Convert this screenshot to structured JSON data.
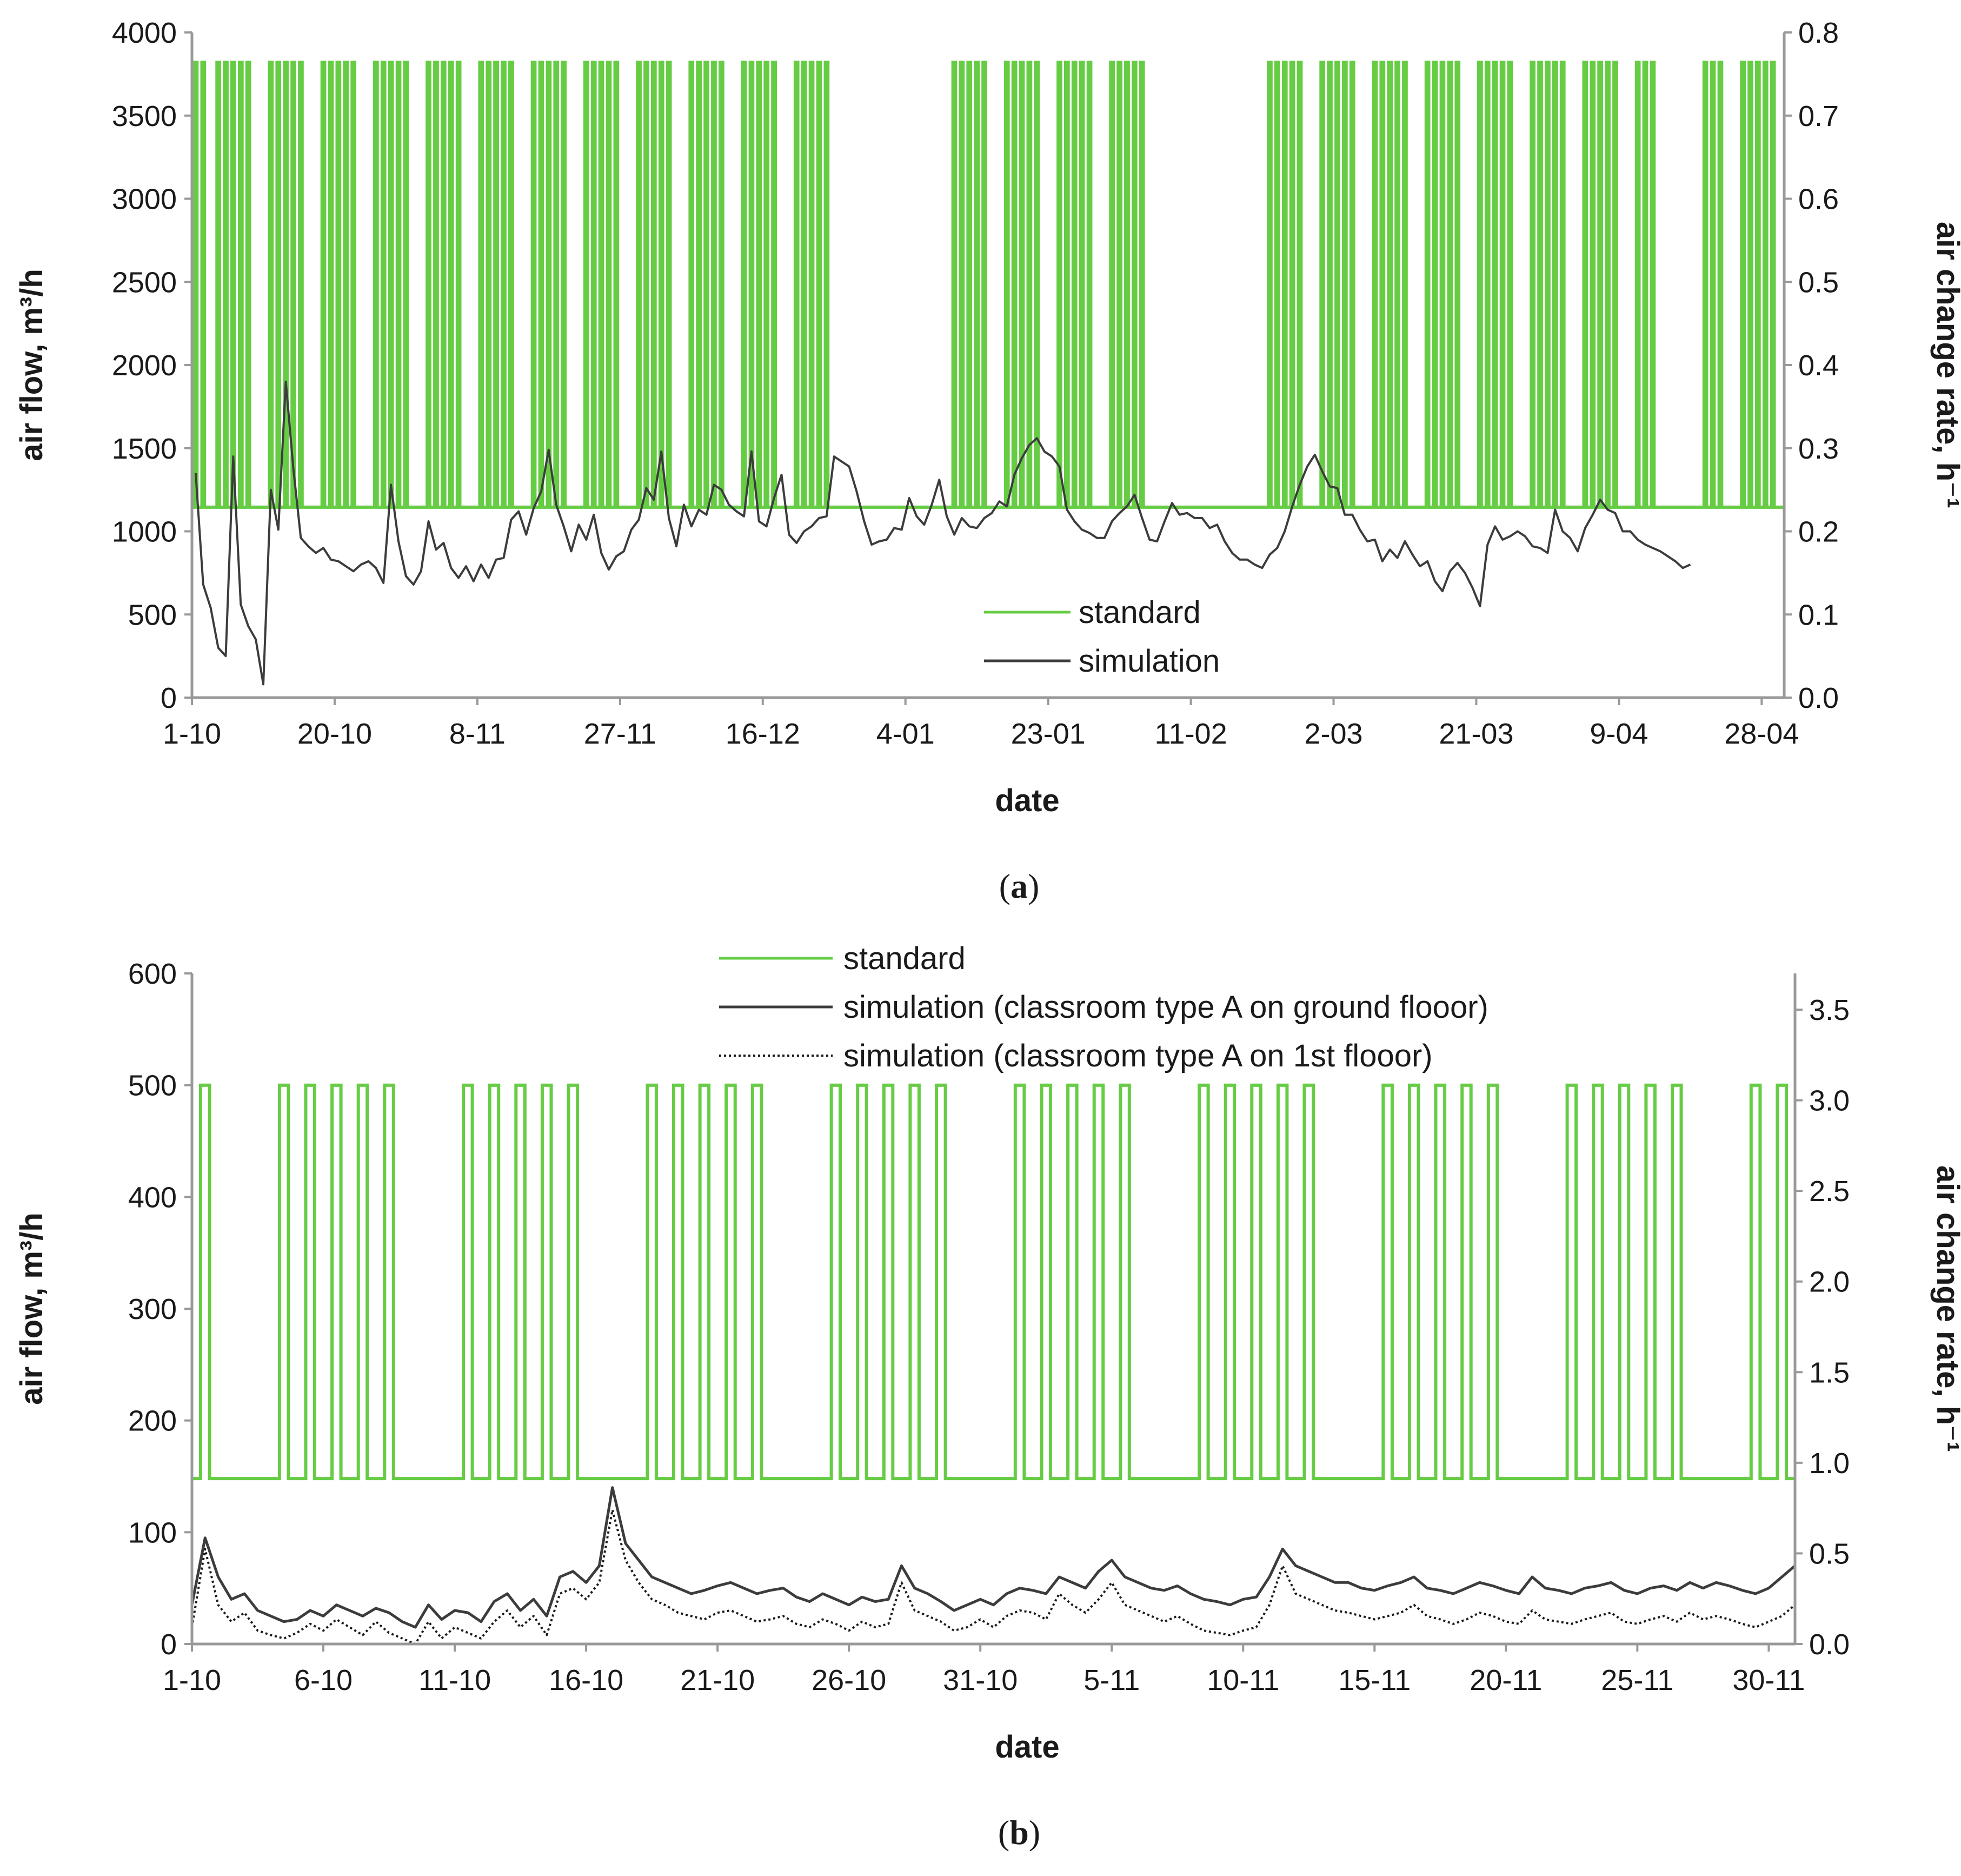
{
  "chart_data": [
    {
      "type": "line",
      "panel": "(a)",
      "caption_letter": "a",
      "xlabel": "date",
      "ylabel": "air flow, m³/h",
      "ylabel_right": "air change rate, h⁻¹",
      "ylim": [
        0,
        4000
      ],
      "ylim_right": [
        0.0,
        0.8
      ],
      "yticks": [
        "0",
        "500",
        "1000",
        "1500",
        "2000",
        "2500",
        "3000",
        "3500",
        "4000"
      ],
      "yticks_right": [
        "0.0",
        "0.1",
        "0.2",
        "0.3",
        "0.4",
        "0.5",
        "0.6",
        "0.7",
        "0.8"
      ],
      "x_tick_labels": [
        "1-10",
        "20-10",
        "8-11",
        "27-11",
        "16-12",
        "4-01",
        "23-01",
        "11-02",
        "2-03",
        "21-03",
        "9-04",
        "28-04"
      ],
      "x_tick_day_index": [
        0,
        19,
        38,
        57,
        76,
        95,
        114,
        133,
        152,
        171,
        190,
        209
      ],
      "x_range_days": [
        0,
        212
      ],
      "legend": [
        "standard",
        "simulation"
      ],
      "colors": {
        "standard": "#66cc44",
        "simulation": "#3c3c3c"
      },
      "series": [
        {
          "name": "standard",
          "description": "occupied-hours step schedule on school days",
          "values": {
            "occupied": 3820,
            "unoccupied": 1145
          },
          "occupied_periods_day_index": [
            [
              0,
              1
            ],
            [
              3,
              7
            ],
            [
              10,
              14
            ],
            [
              17,
              21
            ],
            [
              24,
              28
            ],
            [
              31,
              35
            ],
            [
              38,
              42
            ],
            [
              45,
              49
            ],
            [
              52,
              56
            ],
            [
              59,
              63
            ],
            [
              66,
              70
            ],
            [
              73,
              77
            ],
            [
              80,
              84
            ],
            [
              101,
              105
            ],
            [
              108,
              112
            ],
            [
              115,
              119
            ],
            [
              122,
              126
            ],
            [
              143,
              147
            ],
            [
              150,
              154
            ],
            [
              157,
              161
            ],
            [
              164,
              168
            ],
            [
              171,
              175
            ],
            [
              178,
              182
            ],
            [
              185,
              189
            ],
            [
              192,
              194
            ],
            [
              201,
              203
            ],
            [
              206,
              210
            ]
          ]
        },
        {
          "name": "simulation",
          "description": "simulated air flow, daily values (m3/h)",
          "values": [
            1350,
            680,
            540,
            300,
            250,
            1450,
            560,
            430,
            350,
            80,
            1250,
            1010,
            1900,
            1380,
            960,
            910,
            870,
            900,
            830,
            820,
            790,
            760,
            800,
            820,
            780,
            690,
            1280,
            940,
            730,
            680,
            760,
            1060,
            890,
            930,
            780,
            720,
            790,
            700,
            800,
            720,
            830,
            840,
            1070,
            1120,
            980,
            1140,
            1240,
            1490,
            1160,
            1030,
            880,
            1040,
            950,
            1100,
            870,
            770,
            850,
            880,
            1010,
            1070,
            1260,
            1190,
            1480,
            1080,
            910,
            1160,
            1030,
            1130,
            1100,
            1280,
            1250,
            1160,
            1120,
            1090,
            1480,
            1060,
            1030,
            1200,
            1340,
            980,
            930,
            1000,
            1030,
            1080,
            1090,
            1450,
            1420,
            1390,
            1240,
            1060,
            920,
            940,
            950,
            1020,
            1010,
            1200,
            1090,
            1040,
            1160,
            1310,
            1090,
            980,
            1080,
            1030,
            1020,
            1080,
            1110,
            1180,
            1150,
            1340,
            1440,
            1520,
            1560,
            1480,
            1450,
            1390,
            1130,
            1060,
            1010,
            990,
            960,
            960,
            1060,
            1110,
            1150,
            1220,
            1080,
            950,
            940,
            1060,
            1170,
            1100,
            1110,
            1080,
            1080,
            1020,
            1040,
            940,
            870,
            830,
            830,
            800,
            780,
            860,
            900,
            1000,
            1150,
            1280,
            1390,
            1460,
            1360,
            1270,
            1260,
            1100,
            1100,
            1010,
            940,
            950,
            820,
            890,
            840,
            940,
            860,
            790,
            820,
            700,
            640,
            760,
            810,
            750,
            660,
            550,
            920,
            1030,
            950,
            970,
            1000,
            970,
            910,
            900,
            870,
            1130,
            1000,
            960,
            880,
            1020,
            1100,
            1190,
            1130,
            1110,
            1000,
            1000,
            950,
            920,
            900,
            880,
            850,
            820,
            780,
            800
          ]
        }
      ]
    },
    {
      "type": "line",
      "panel": "(b)",
      "caption_letter": "b",
      "xlabel": "date",
      "ylabel": "air flow, m³/h",
      "ylabel_right": "air change rate, h⁻¹",
      "ylim": [
        0,
        600
      ],
      "ylim_right": [
        0.0,
        3.7
      ],
      "yticks": [
        "0",
        "100",
        "200",
        "300",
        "400",
        "500",
        "600"
      ],
      "yticks_right": [
        "0.0",
        "0.5",
        "1.0",
        "1.5",
        "2.0",
        "2.5",
        "3.0",
        "3.5"
      ],
      "x_tick_labels": [
        "1-10",
        "6-10",
        "11-10",
        "16-10",
        "21-10",
        "26-10",
        "31-10",
        "5-11",
        "10-11",
        "15-11",
        "20-11",
        "25-11",
        "30-11"
      ],
      "x_tick_day_index": [
        0,
        5,
        10,
        15,
        20,
        25,
        30,
        35,
        40,
        45,
        50,
        55,
        60
      ],
      "x_range_days": [
        0,
        61
      ],
      "legend": [
        "standard",
        "simulation (classroom type A on ground flooor)",
        "simulation (classroom type A on 1st flooor)"
      ],
      "colors": {
        "standard": "#66cc44",
        "ground": "#3c3c3c",
        "first": "#1a1a1a"
      },
      "series": [
        {
          "name": "standard",
          "description": "occupied-hours step schedule on school days",
          "values": {
            "occupied": 500,
            "unoccupied": 148
          },
          "school_days_day_index": [
            0,
            3,
            4,
            5,
            6,
            7,
            10,
            11,
            12,
            13,
            14,
            17,
            18,
            19,
            20,
            21,
            24,
            25,
            26,
            27,
            28,
            31,
            32,
            33,
            34,
            35,
            38,
            39,
            40,
            41,
            42,
            45,
            46,
            47,
            48,
            49,
            52,
            53,
            54,
            55,
            56,
            59,
            60
          ]
        },
        {
          "name": "simulation (classroom type A on ground flooor)",
          "description": "simulated air flow, half-day values (m3/h)",
          "values": [
            35,
            95,
            60,
            40,
            45,
            30,
            25,
            20,
            22,
            30,
            25,
            35,
            30,
            25,
            32,
            28,
            20,
            15,
            35,
            22,
            30,
            28,
            20,
            38,
            45,
            30,
            40,
            25,
            60,
            65,
            55,
            70,
            140,
            90,
            75,
            60,
            55,
            50,
            45,
            48,
            52,
            55,
            50,
            45,
            48,
            50,
            42,
            38,
            45,
            40,
            35,
            42,
            38,
            40,
            70,
            50,
            45,
            38,
            30,
            35,
            40,
            35,
            45,
            50,
            48,
            45,
            60,
            55,
            50,
            65,
            75,
            60,
            55,
            50,
            48,
            52,
            45,
            40,
            38,
            35,
            40,
            42,
            60,
            85,
            70,
            65,
            60,
            55,
            55,
            50,
            48,
            52,
            55,
            60,
            50,
            48,
            45,
            50,
            55,
            52,
            48,
            45,
            60,
            50,
            48,
            45,
            50,
            52,
            55,
            48,
            45,
            50,
            52,
            48,
            55,
            50,
            55,
            52,
            48,
            45,
            50,
            60,
            70
          ]
        },
        {
          "name": "simulation (classroom type A on 1st flooor)",
          "description": "simulated air flow, half-day values (m3/h)",
          "values": [
            15,
            85,
            35,
            20,
            28,
            12,
            8,
            5,
            10,
            18,
            12,
            22,
            15,
            8,
            20,
            10,
            5,
            0,
            20,
            5,
            15,
            10,
            5,
            20,
            30,
            15,
            25,
            8,
            45,
            50,
            40,
            55,
            120,
            75,
            55,
            40,
            35,
            28,
            25,
            22,
            28,
            30,
            25,
            20,
            22,
            25,
            18,
            15,
            22,
            18,
            12,
            20,
            15,
            18,
            55,
            30,
            25,
            20,
            12,
            15,
            22,
            15,
            25,
            30,
            28,
            22,
            45,
            35,
            28,
            40,
            55,
            35,
            30,
            25,
            20,
            25,
            18,
            12,
            10,
            8,
            12,
            15,
            35,
            70,
            45,
            40,
            35,
            30,
            28,
            25,
            22,
            25,
            28,
            35,
            25,
            22,
            18,
            22,
            28,
            25,
            20,
            18,
            30,
            22,
            20,
            18,
            22,
            25,
            28,
            20,
            18,
            22,
            25,
            20,
            28,
            22,
            25,
            22,
            18,
            15,
            20,
            25,
            35
          ]
        }
      ]
    }
  ]
}
